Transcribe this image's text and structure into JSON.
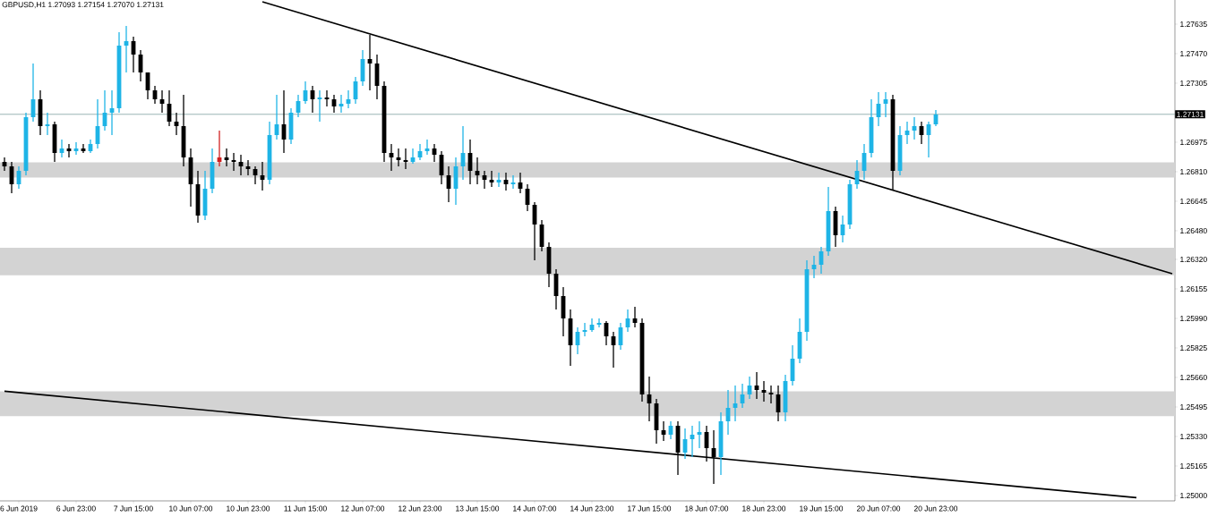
{
  "chart_data": {
    "type": "candlestick",
    "title": "GBPUSD,H1 1.27093 1.27154 1.27070 1.27131",
    "categories": [
      null,
      null,
      "6 Jun 2019",
      null,
      null,
      null,
      null,
      null,
      null,
      null,
      "6 Jun 23:00",
      null,
      null,
      null,
      null,
      null,
      null,
      null,
      "7 Jun 15:00",
      null,
      null,
      null,
      null,
      null,
      null,
      null,
      "10 Jun 07:00",
      null,
      null,
      null,
      null,
      null,
      null,
      null,
      "10 Jun 23:00",
      null,
      null,
      null,
      null,
      null,
      null,
      null,
      "11 Jun 15:00",
      null,
      null,
      null,
      null,
      null,
      null,
      null,
      "12 Jun 07:00",
      null,
      null,
      null,
      null,
      null,
      null,
      null,
      "12 Jun 23:00",
      null,
      null,
      null,
      null,
      null,
      null,
      null,
      "13 Jun 15:00",
      null,
      null,
      null,
      null,
      null,
      null,
      null,
      "14 Jun 07:00",
      null,
      null,
      null,
      null,
      null,
      null,
      null,
      "14 Jun 23:00",
      null,
      null,
      null,
      null,
      null,
      null,
      null,
      "17 Jun 15:00",
      null,
      null,
      null,
      null,
      null,
      null,
      null,
      "18 Jun 07:00",
      null,
      null,
      null,
      null,
      null,
      null,
      null,
      "18 Jun 23:00",
      null,
      null,
      null,
      null,
      null,
      null,
      null,
      "19 Jun 15:00",
      null,
      null,
      null,
      null,
      null,
      null,
      null,
      "20 Jun 07:00",
      null,
      null,
      null,
      null,
      null,
      null,
      null,
      "20 Jun 23:00",
      null,
      null,
      null,
      null,
      null,
      null,
      null,
      null,
      null,
      null,
      null,
      null,
      null,
      null,
      null,
      null,
      null,
      null,
      null,
      null,
      null,
      null,
      null,
      null,
      null,
      null,
      null,
      null,
      null,
      null,
      null,
      null,
      null
    ],
    "ohlc": [
      [
        1.26865,
        1.2689,
        1.26815,
        1.2684
      ],
      [
        1.2684,
        1.26865,
        1.2669,
        1.2674
      ],
      [
        1.2674,
        1.2684,
        1.26715,
        1.26815
      ],
      [
        1.26815,
        1.2714,
        1.2679,
        1.27115
      ],
      [
        1.27115,
        1.27415,
        1.2709,
        1.27215
      ],
      [
        1.27215,
        1.27265,
        1.27015,
        1.27065
      ],
      [
        1.27065,
        1.2714,
        1.27015,
        1.27075
      ],
      [
        1.27075,
        1.2709,
        1.26865,
        1.26915
      ],
      [
        1.26915,
        1.2699,
        1.2689,
        1.2694
      ],
      [
        1.2694,
        1.26965,
        1.2689,
        1.26925
      ],
      [
        1.26925,
        1.26975,
        1.26905,
        1.2694
      ],
      [
        1.2694,
        1.26965,
        1.26915,
        1.26925
      ],
      [
        1.26925,
        1.2699,
        1.26915,
        1.26965
      ],
      [
        1.26965,
        1.27215,
        1.2694,
        1.27065
      ],
      [
        1.27065,
        1.27265,
        1.2704,
        1.2714
      ],
      [
        1.2714,
        1.27265,
        1.27015,
        1.27165
      ],
      [
        1.27165,
        1.2759,
        1.2714,
        1.27515
      ],
      [
        1.27515,
        1.27625,
        1.27365,
        1.2754
      ],
      [
        1.2754,
        1.27565,
        1.27365,
        1.27465
      ],
      [
        1.27465,
        1.2749,
        1.27315,
        1.27365
      ],
      [
        1.27365,
        1.27365,
        1.27215,
        1.27265
      ],
      [
        1.27265,
        1.2729,
        1.2719,
        1.27215
      ],
      [
        1.27215,
        1.27265,
        1.2714,
        1.2719
      ],
      [
        1.2719,
        1.27265,
        1.27065,
        1.2709
      ],
      [
        1.2709,
        1.2714,
        1.27015,
        1.27065
      ],
      [
        1.27065,
        1.2724,
        1.2684,
        1.2689
      ],
      [
        1.2689,
        1.2694,
        1.26615,
        1.2674
      ],
      [
        1.2674,
        1.26815,
        1.26525,
        1.26565
      ],
      [
        1.26565,
        1.26815,
        1.2654,
        1.26715
      ],
      [
        1.26715,
        1.2694,
        1.2669,
        1.26865
      ],
      [
        1.26865,
        1.2704,
        1.2684,
        1.2689
      ],
      [
        1.2689,
        1.2694,
        1.2684,
        1.26875
      ],
      [
        1.26875,
        1.26915,
        1.26815,
        1.26865
      ],
      [
        1.26865,
        1.26905,
        1.2679,
        1.2684
      ],
      [
        1.2684,
        1.26875,
        1.2679,
        1.26825
      ],
      [
        1.26825,
        1.2684,
        1.2674,
        1.2679
      ],
      [
        1.2679,
        1.26865,
        1.26705,
        1.26765
      ],
      [
        1.26765,
        1.2709,
        1.2674,
        1.27015
      ],
      [
        1.27015,
        1.2724,
        1.2699,
        1.27075
      ],
      [
        1.27075,
        1.27265,
        1.26915,
        1.2699
      ],
      [
        1.2699,
        1.27165,
        1.26965,
        1.2714
      ],
      [
        1.2714,
        1.2724,
        1.27115,
        1.27205
      ],
      [
        1.27205,
        1.27315,
        1.2719,
        1.27265
      ],
      [
        1.27265,
        1.2729,
        1.2714,
        1.27215
      ],
      [
        1.27215,
        1.27265,
        1.2709,
        1.27225
      ],
      [
        1.27225,
        1.27265,
        1.27175,
        1.27215
      ],
      [
        1.27215,
        1.2724,
        1.2714,
        1.27175
      ],
      [
        1.27175,
        1.2724,
        1.2714,
        1.2719
      ],
      [
        1.2719,
        1.27265,
        1.27165,
        1.27215
      ],
      [
        1.27215,
        1.2734,
        1.2719,
        1.27315
      ],
      [
        1.27315,
        1.2749,
        1.2729,
        1.2744
      ],
      [
        1.2744,
        1.27575,
        1.27265,
        1.27415
      ],
      [
        1.27415,
        1.27465,
        1.27215,
        1.2729
      ],
      [
        1.2729,
        1.27315,
        1.26865,
        1.26915
      ],
      [
        1.26915,
        1.26965,
        1.26815,
        1.2689
      ],
      [
        1.2689,
        1.2694,
        1.2684,
        1.26875
      ],
      [
        1.26875,
        1.2694,
        1.26825,
        1.26865
      ],
      [
        1.26865,
        1.2694,
        1.26855,
        1.2689
      ],
      [
        1.2689,
        1.26965,
        1.26875,
        1.26925
      ],
      [
        1.26925,
        1.2699,
        1.26905,
        1.2694
      ],
      [
        1.2694,
        1.26965,
        1.26865,
        1.26905
      ],
      [
        1.26905,
        1.26925,
        1.2674,
        1.2679
      ],
      [
        1.2679,
        1.2684,
        1.2664,
        1.26715
      ],
      [
        1.26715,
        1.2689,
        1.26625,
        1.2684
      ],
      [
        1.2684,
        1.27065,
        1.26765,
        1.26915
      ],
      [
        1.26915,
        1.2699,
        1.2674,
        1.26815
      ],
      [
        1.26815,
        1.2689,
        1.2674,
        1.2679
      ],
      [
        1.2679,
        1.26815,
        1.26715,
        1.26765
      ],
      [
        1.26765,
        1.26815,
        1.26725,
        1.2675
      ],
      [
        1.2675,
        1.26805,
        1.26725,
        1.26765
      ],
      [
        1.26765,
        1.26805,
        1.26705,
        1.2674
      ],
      [
        1.2674,
        1.2679,
        1.26715,
        1.2675
      ],
      [
        1.2675,
        1.26805,
        1.2669,
        1.26715
      ],
      [
        1.26715,
        1.2674,
        1.2659,
        1.26625
      ],
      [
        1.26625,
        1.2664,
        1.26315,
        1.26515
      ],
      [
        1.26515,
        1.2654,
        1.26365,
        1.2639
      ],
      [
        1.2639,
        1.26415,
        1.26165,
        1.2624
      ],
      [
        1.2624,
        1.26265,
        1.2604,
        1.26115
      ],
      [
        1.26115,
        1.26165,
        1.2589,
        1.2599
      ],
      [
        1.2599,
        1.2604,
        1.25725,
        1.2584
      ],
      [
        1.2584,
        1.2594,
        1.2579,
        1.25915
      ],
      [
        1.25915,
        1.25965,
        1.2589,
        1.25925
      ],
      [
        1.25925,
        1.2599,
        1.25915,
        1.25955
      ],
      [
        1.25955,
        1.2599,
        1.2594,
        1.25965
      ],
      [
        1.25965,
        1.25975,
        1.2584,
        1.2589
      ],
      [
        1.2589,
        1.25915,
        1.25715,
        1.2584
      ],
      [
        1.2584,
        1.25965,
        1.25815,
        1.2594
      ],
      [
        1.2594,
        1.2604,
        1.25915,
        1.2599
      ],
      [
        1.2599,
        1.26055,
        1.2594,
        1.25965
      ],
      [
        1.25965,
        1.2599,
        1.25525,
        1.25565
      ],
      [
        1.25565,
        1.25665,
        1.25415,
        1.25515
      ],
      [
        1.25515,
        1.2554,
        1.2529,
        1.25365
      ],
      [
        1.25365,
        1.25415,
        1.25305,
        1.2534
      ],
      [
        1.2534,
        1.25415,
        1.25315,
        1.2539
      ],
      [
        1.2539,
        1.25415,
        1.25115,
        1.2524
      ],
      [
        1.2524,
        1.25375,
        1.25205,
        1.25315
      ],
      [
        1.25315,
        1.2539,
        1.25215,
        1.2534
      ],
      [
        1.2534,
        1.25415,
        1.25265,
        1.25355
      ],
      [
        1.25355,
        1.2539,
        1.2519,
        1.25265
      ],
      [
        1.25265,
        1.25365,
        1.25065,
        1.25215
      ],
      [
        1.25215,
        1.25465,
        1.25115,
        1.25415
      ],
      [
        1.25415,
        1.2559,
        1.2534,
        1.2549
      ],
      [
        1.2549,
        1.25615,
        1.25415,
        1.25515
      ],
      [
        1.25515,
        1.25625,
        1.2549,
        1.25565
      ],
      [
        1.25565,
        1.25665,
        1.2554,
        1.25615
      ],
      [
        1.25615,
        1.2569,
        1.2554,
        1.2559
      ],
      [
        1.2559,
        1.2564,
        1.25525,
        1.25575
      ],
      [
        1.25575,
        1.25615,
        1.25515,
        1.25565
      ],
      [
        1.25565,
        1.25615,
        1.25415,
        1.25465
      ],
      [
        1.25465,
        1.25675,
        1.25415,
        1.2564
      ],
      [
        1.2564,
        1.2584,
        1.25615,
        1.25765
      ],
      [
        1.25765,
        1.2599,
        1.2574,
        1.25915
      ],
      [
        1.25915,
        1.26315,
        1.25865,
        1.26265
      ],
      [
        1.26265,
        1.2634,
        1.26215,
        1.2629
      ],
      [
        1.2629,
        1.2639,
        1.2624,
        1.26365
      ],
      [
        1.26365,
        1.26725,
        1.2634,
        1.2659
      ],
      [
        1.2659,
        1.26615,
        1.2639,
        1.26455
      ],
      [
        1.26455,
        1.26565,
        1.26415,
        1.26515
      ],
      [
        1.26515,
        1.26765,
        1.2649,
        1.2674
      ],
      [
        1.2674,
        1.26875,
        1.26715,
        1.26815
      ],
      [
        1.26815,
        1.26965,
        1.26765,
        1.26915
      ],
      [
        1.26915,
        1.27215,
        1.2689,
        1.27115
      ],
      [
        1.27115,
        1.27255,
        1.27065,
        1.2719
      ],
      [
        1.2719,
        1.27255,
        1.27115,
        1.27215
      ],
      [
        1.27215,
        1.2724,
        1.26705,
        1.26815
      ],
      [
        1.26815,
        1.27065,
        1.2679,
        1.27015
      ],
      [
        1.27015,
        1.2709,
        1.26965,
        1.2704
      ],
      [
        1.2704,
        1.27115,
        1.2699,
        1.27065
      ],
      [
        1.27065,
        1.2709,
        1.26965,
        1.27015
      ],
      [
        1.27015,
        1.2709,
        1.2689,
        1.27075
      ],
      [
        1.27075,
        1.27155,
        1.27065,
        1.2713
      ],
      null,
      null,
      null,
      null,
      null,
      null,
      null,
      null,
      null,
      null,
      null,
      null,
      null,
      null,
      null,
      null,
      null,
      null,
      null,
      null,
      null,
      null,
      null,
      null,
      null,
      null,
      null,
      null,
      null,
      null,
      null,
      null,
      null
    ],
    "colors": [
      "#000000",
      "#000000",
      "#1eb4e6",
      "#1eb4e6",
      "#1eb4e6",
      "#000000",
      "#1eb4e6",
      "#000000",
      "#1eb4e6",
      "#000000",
      "#1eb4e6",
      "#000000",
      "#1eb4e6",
      "#1eb4e6",
      "#1eb4e6",
      "#1eb4e6",
      "#1eb4e6",
      "#1eb4e6",
      "#000000",
      "#000000",
      "#000000",
      "#000000",
      "#000000",
      "#000000",
      "#000000",
      "#000000",
      "#000000",
      "#000000",
      "#1eb4e6",
      "#1eb4e6",
      "#d02020",
      "#000000",
      "#000000",
      "#000000",
      "#000000",
      "#000000",
      "#000000",
      "#1eb4e6",
      "#1eb4e6",
      "#000000",
      "#1eb4e6",
      "#1eb4e6",
      "#1eb4e6",
      "#000000",
      "#1eb4e6",
      "#000000",
      "#000000",
      "#1eb4e6",
      "#1eb4e6",
      "#1eb4e6",
      "#1eb4e6",
      "#000000",
      "#000000",
      "#000000",
      "#000000",
      "#000000",
      "#000000",
      "#1eb4e6",
      "#1eb4e6",
      "#1eb4e6",
      "#000000",
      "#000000",
      "#000000",
      "#1eb4e6",
      "#1eb4e6",
      "#000000",
      "#000000",
      "#000000",
      "#000000",
      "#1eb4e6",
      "#000000",
      "#1eb4e6",
      "#000000",
      "#000000",
      "#000000",
      "#000000",
      "#000000",
      "#000000",
      "#000000",
      "#000000",
      "#1eb4e6",
      "#1eb4e6",
      "#1eb4e6",
      "#1eb4e6",
      "#000000",
      "#000000",
      "#1eb4e6",
      "#1eb4e6",
      "#000000",
      "#000000",
      "#000000",
      "#000000",
      "#000000",
      "#1eb4e6",
      "#000000",
      "#1eb4e6",
      "#1eb4e6",
      "#1eb4e6",
      "#000000",
      "#000000",
      "#1eb4e6",
      "#1eb4e6",
      "#1eb4e6",
      "#1eb4e6",
      "#1eb4e6",
      "#000000",
      "#000000",
      "#000000",
      "#000000",
      "#1eb4e6",
      "#1eb4e6",
      "#1eb4e6",
      "#1eb4e6",
      "#1eb4e6",
      "#1eb4e6",
      "#1eb4e6",
      "#000000",
      "#1eb4e6",
      "#1eb4e6",
      "#1eb4e6",
      "#1eb4e6",
      "#1eb4e6",
      "#1eb4e6",
      "#1eb4e6",
      "#000000",
      "#1eb4e6",
      "#1eb4e6",
      "#1eb4e6",
      "#000000",
      "#1eb4e6",
      "#1eb4e6",
      null,
      null,
      null,
      null,
      null,
      null,
      null,
      null,
      null,
      null,
      null,
      null,
      null,
      null,
      null,
      null,
      null,
      null,
      null,
      null,
      null,
      null,
      null,
      null,
      null,
      null,
      null,
      null,
      null,
      null,
      null,
      null,
      null
    ],
    "series": [
      {
        "type": "line",
        "color": "#000000",
        "values": [
          null,
          null,
          null,
          null,
          null,
          null,
          null,
          null,
          null,
          null,
          null,
          null,
          null,
          null,
          null,
          null,
          null,
          null,
          null,
          null,
          null,
          null,
          null,
          null,
          null,
          null,
          null,
          null,
          null,
          null,
          null,
          null,
          null,
          null,
          null,
          null,
          1.2776,
          null,
          null,
          null,
          null,
          null,
          null,
          null,
          null,
          null,
          null,
          null,
          null,
          null,
          null,
          null,
          null,
          null,
          null,
          null,
          null,
          null,
          null,
          null,
          null,
          null,
          null,
          null,
          null,
          null,
          null,
          null,
          null,
          null,
          null,
          null,
          null,
          null,
          null,
          null,
          null,
          null,
          null,
          null,
          null,
          null,
          null,
          null,
          null,
          null,
          null,
          null,
          null,
          null,
          null,
          null,
          null,
          null,
          null,
          null,
          null,
          null,
          null,
          null,
          null,
          null,
          null,
          null,
          null,
          null,
          null,
          null,
          null,
          null,
          null,
          null,
          null,
          null,
          null,
          null,
          null,
          null,
          null,
          null,
          null,
          null,
          null,
          null,
          null,
          null,
          null,
          null,
          null,
          null,
          null,
          null,
          null,
          null,
          null,
          null,
          null,
          null,
          null,
          null,
          null,
          null,
          null,
          null,
          null,
          null,
          null,
          null,
          null,
          null,
          null,
          null,
          null,
          null,
          null,
          null,
          null,
          null,
          null,
          null,
          null,
          null,
          null,
          1.2624
        ]
      },
      {
        "type": "line",
        "color": "#000000",
        "values": [
          1.25583,
          null,
          null,
          null,
          null,
          null,
          null,
          null,
          null,
          null,
          null,
          null,
          null,
          null,
          null,
          null,
          null,
          null,
          null,
          null,
          null,
          null,
          null,
          null,
          null,
          null,
          null,
          null,
          null,
          null,
          null,
          null,
          null,
          null,
          null,
          null,
          null,
          null,
          null,
          null,
          null,
          null,
          null,
          null,
          null,
          null,
          null,
          null,
          null,
          null,
          null,
          null,
          null,
          null,
          null,
          null,
          null,
          null,
          null,
          null,
          null,
          null,
          null,
          null,
          null,
          null,
          null,
          null,
          null,
          null,
          null,
          null,
          null,
          null,
          null,
          null,
          null,
          null,
          null,
          null,
          null,
          null,
          null,
          null,
          null,
          null,
          null,
          null,
          null,
          null,
          null,
          null,
          null,
          null,
          null,
          null,
          null,
          null,
          null,
          null,
          null,
          null,
          null,
          null,
          null,
          null,
          null,
          null,
          null,
          null,
          null,
          null,
          null,
          null,
          null,
          null,
          null,
          null,
          null,
          null,
          null,
          null,
          null,
          null,
          null,
          null,
          null,
          null,
          null,
          null,
          null,
          null,
          null,
          null,
          null,
          null,
          null,
          null,
          null,
          null,
          null,
          null,
          null,
          null,
          null,
          null,
          null,
          null,
          null,
          null,
          null,
          null,
          null,
          null,
          null,
          null,
          null,
          null,
          1.24988,
          null,
          null,
          null,
          null,
          null
        ]
      }
    ],
    "ylim": [
      1.2497,
      1.2777
    ],
    "yticks": [
      {
        "value": 1.25,
        "label": "1.25000"
      },
      {
        "value": 1.25165,
        "label": "1.25165"
      },
      {
        "value": 1.2533,
        "label": "1.25330"
      },
      {
        "value": 1.25495,
        "label": "1.25495"
      },
      {
        "value": 1.2566,
        "label": "1.25660"
      },
      {
        "value": 1.25825,
        "label": "1.25825"
      },
      {
        "value": 1.2599,
        "label": "1.25990"
      },
      {
        "value": 1.26155,
        "label": "1.26155"
      },
      {
        "value": 1.2632,
        "label": "1.26320"
      },
      {
        "value": 1.2648,
        "label": "1.26480"
      },
      {
        "value": 1.26645,
        "label": "1.26645"
      },
      {
        "value": 1.2681,
        "label": "1.26810"
      },
      {
        "value": 1.26975,
        "label": "1.26975"
      },
      {
        "value": 1.27305,
        "label": "1.27305"
      },
      {
        "value": 1.2747,
        "label": "1.27470"
      },
      {
        "value": 1.27635,
        "label": "1.27635"
      }
    ],
    "ref_lines": [
      {
        "axis": "y",
        "value": 1.27131,
        "label": "1.27131",
        "color": "#7f9f9f"
      }
    ],
    "bands": [
      {
        "axis": "y",
        "from": 1.26778,
        "to": 1.26863,
        "color": "#d3d3d3"
      },
      {
        "axis": "y",
        "from": 1.26231,
        "to": 1.26385,
        "color": "#d3d3d3"
      },
      {
        "axis": "y",
        "from": 1.25444,
        "to": 1.25583,
        "color": "#d3d3d3"
      }
    ]
  }
}
